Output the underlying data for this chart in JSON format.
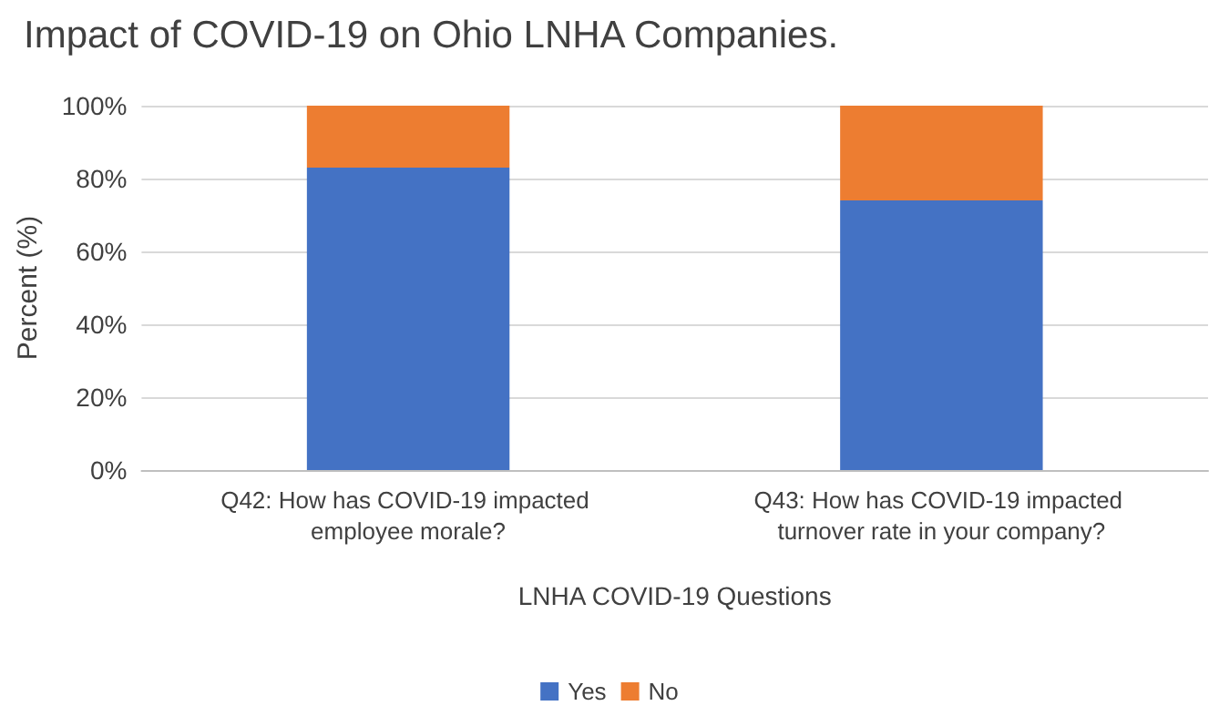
{
  "chart_data": {
    "type": "bar",
    "stacked": true,
    "title": "Impact of COVID-19 on Ohio LNHA Companies.",
    "xlabel": "LNHA COVID-19 Questions",
    "ylabel": "Percent (%)",
    "categories": [
      "Q42: How has COVID-19 impacted employee morale?",
      "Q43: How has COVID-19 impacted turnover rate in your company?"
    ],
    "series": [
      {
        "name": "Yes",
        "color": "#4472c4",
        "values": [
          83,
          74
        ]
      },
      {
        "name": "No",
        "color": "#ed7d31",
        "values": [
          17,
          26
        ]
      }
    ],
    "ylim": [
      0,
      100
    ],
    "yticks": [
      {
        "value": 0,
        "label": "0%"
      },
      {
        "value": 20,
        "label": "20%"
      },
      {
        "value": 40,
        "label": "40%"
      },
      {
        "value": 60,
        "label": "60%"
      },
      {
        "value": 80,
        "label": "80%"
      },
      {
        "value": 100,
        "label": "100%"
      }
    ],
    "grid": "y",
    "legend": "bottom"
  }
}
